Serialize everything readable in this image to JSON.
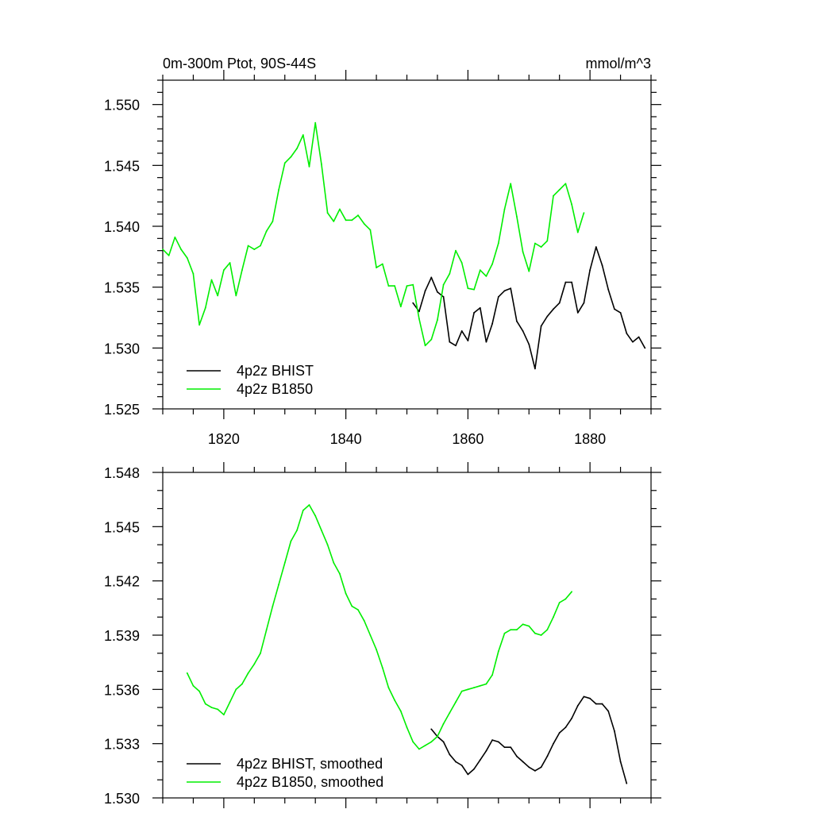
{
  "chart_data": [
    {
      "type": "line",
      "title": "0m-300m Ptot, 90S-44S",
      "subtitle": "mmol/m^3",
      "xlim": [
        1810,
        1890
      ],
      "ylim": [
        1.525,
        1.552
      ],
      "xticks": [
        1820,
        1840,
        1860,
        1880
      ],
      "xtick_labels": [
        "1820",
        "1840",
        "1860",
        "1880"
      ],
      "yticks": [
        1.525,
        1.53,
        1.535,
        1.54,
        1.545,
        1.55
      ],
      "ytick_labels": [
        "1.525",
        "1.530",
        "1.535",
        "1.540",
        "1.545",
        "1.550"
      ],
      "legend_position": "bottom-left",
      "series": [
        {
          "name": "4p2z BHIST",
          "color": "#000000",
          "x": [
            1851,
            1852,
            1853,
            1854,
            1855,
            1856,
            1857,
            1858,
            1859,
            1860,
            1861,
            1862,
            1863,
            1864,
            1865,
            1866,
            1867,
            1868,
            1869,
            1870,
            1871,
            1872,
            1873,
            1874,
            1875,
            1876,
            1877,
            1878,
            1879,
            1880,
            1881,
            1882,
            1883,
            1884,
            1885,
            1886,
            1887,
            1888,
            1889
          ],
          "values": [
            1.5337,
            1.533,
            1.5347,
            1.5358,
            1.5346,
            1.5342,
            1.5305,
            1.5302,
            1.5314,
            1.5306,
            1.5329,
            1.5333,
            1.5305,
            1.532,
            1.5342,
            1.5347,
            1.5349,
            1.5322,
            1.5314,
            1.5303,
            1.5283,
            1.5318,
            1.5326,
            1.5332,
            1.5337,
            1.5354,
            1.5354,
            1.5329,
            1.5337,
            1.5364,
            1.5383,
            1.5368,
            1.5348,
            1.5332,
            1.5329,
            1.5312,
            1.5305,
            1.5309,
            1.53
          ]
        },
        {
          "name": "4p2z B1850",
          "color": "#00ee00",
          "x": [
            1810,
            1811,
            1812,
            1813,
            1814,
            1815,
            1816,
            1817,
            1818,
            1819,
            1820,
            1821,
            1822,
            1823,
            1824,
            1825,
            1826,
            1827,
            1828,
            1829,
            1830,
            1831,
            1832,
            1833,
            1834,
            1835,
            1836,
            1837,
            1838,
            1839,
            1840,
            1841,
            1842,
            1843,
            1844,
            1845,
            1846,
            1847,
            1848,
            1849,
            1850,
            1851,
            1852,
            1853,
            1854,
            1855,
            1856,
            1857,
            1858,
            1859,
            1860,
            1861,
            1862,
            1863,
            1864,
            1865,
            1866,
            1867,
            1868,
            1869,
            1870,
            1871,
            1872,
            1873,
            1874,
            1875,
            1876,
            1877,
            1878,
            1879
          ],
          "values": [
            1.5381,
            1.5376,
            1.5391,
            1.5381,
            1.5374,
            1.5361,
            1.5319,
            1.5333,
            1.5356,
            1.5343,
            1.5364,
            1.537,
            1.5343,
            1.5364,
            1.5384,
            1.5381,
            1.5384,
            1.5396,
            1.5404,
            1.543,
            1.5452,
            1.5457,
            1.5464,
            1.5475,
            1.5449,
            1.5485,
            1.5451,
            1.5411,
            1.5404,
            1.5414,
            1.5405,
            1.5405,
            1.5409,
            1.5402,
            1.5397,
            1.5366,
            1.5369,
            1.5351,
            1.5351,
            1.5334,
            1.5351,
            1.5352,
            1.5324,
            1.5302,
            1.5307,
            1.5323,
            1.5352,
            1.5361,
            1.538,
            1.537,
            1.5349,
            1.5348,
            1.5364,
            1.5359,
            1.5369,
            1.5386,
            1.5414,
            1.5435,
            1.5408,
            1.5379,
            1.5363,
            1.5386,
            1.5383,
            1.5388,
            1.5425,
            1.543,
            1.5435,
            1.5418,
            1.5395,
            1.5411
          ]
        }
      ]
    },
    {
      "type": "line",
      "title": "",
      "xlim": [
        1810,
        1890
      ],
      "ylim": [
        1.53,
        1.548
      ],
      "xticks": [
        1820,
        1840,
        1860,
        1880
      ],
      "yticks": [
        1.53,
        1.533,
        1.536,
        1.539,
        1.542,
        1.545,
        1.548
      ],
      "ytick_labels": [
        "1.530",
        "1.533",
        "1.536",
        "1.539",
        "1.542",
        "1.545",
        "1.548"
      ],
      "legend_position": "bottom-left",
      "series": [
        {
          "name": "4p2z BHIST, smoothed",
          "color": "#000000",
          "x": [
            1854,
            1855,
            1856,
            1857,
            1858,
            1859,
            1860,
            1861,
            1862,
            1863,
            1864,
            1865,
            1866,
            1867,
            1868,
            1869,
            1870,
            1871,
            1872,
            1873,
            1874,
            1875,
            1876,
            1877,
            1878,
            1879,
            1880,
            1881,
            1882,
            1883,
            1884,
            1885,
            1886
          ],
          "values": [
            1.5338,
            1.5334,
            1.5331,
            1.5324,
            1.532,
            1.5318,
            1.5313,
            1.5316,
            1.5321,
            1.5326,
            1.5332,
            1.5331,
            1.5328,
            1.5328,
            1.5323,
            1.532,
            1.5317,
            1.5315,
            1.5317,
            1.5323,
            1.533,
            1.5336,
            1.5339,
            1.5344,
            1.5351,
            1.5356,
            1.5355,
            1.5352,
            1.5352,
            1.5348,
            1.5337,
            1.532,
            1.5308
          ]
        },
        {
          "name": "4p2z B1850, smoothed",
          "color": "#00ee00",
          "x": [
            1814,
            1815,
            1816,
            1817,
            1818,
            1819,
            1820,
            1821,
            1822,
            1823,
            1824,
            1825,
            1826,
            1827,
            1828,
            1829,
            1830,
            1831,
            1832,
            1833,
            1834,
            1835,
            1836,
            1837,
            1838,
            1839,
            1840,
            1841,
            1842,
            1843,
            1844,
            1845,
            1846,
            1847,
            1848,
            1849,
            1850,
            1851,
            1852,
            1853,
            1854,
            1855,
            1856,
            1857,
            1858,
            1859,
            1860,
            1861,
            1862,
            1863,
            1864,
            1865,
            1866,
            1867,
            1868,
            1869,
            1870,
            1871,
            1872,
            1873,
            1874,
            1875,
            1876,
            1877
          ],
          "values": [
            1.5369,
            1.5362,
            1.5359,
            1.5352,
            1.535,
            1.5349,
            1.5346,
            1.5353,
            1.536,
            1.5363,
            1.5369,
            1.5374,
            1.538,
            1.5393,
            1.5406,
            1.5418,
            1.543,
            1.5442,
            1.5448,
            1.5459,
            1.5462,
            1.5456,
            1.5448,
            1.544,
            1.543,
            1.5424,
            1.5413,
            1.5406,
            1.5404,
            1.5398,
            1.539,
            1.5382,
            1.5372,
            1.5361,
            1.5354,
            1.5348,
            1.5339,
            1.5331,
            1.5327,
            1.5329,
            1.5331,
            1.5334,
            1.5341,
            1.5347,
            1.5353,
            1.5359,
            1.536,
            1.5361,
            1.5362,
            1.5363,
            1.5368,
            1.5381,
            1.5391,
            1.5393,
            1.5393,
            1.5396,
            1.5395,
            1.5391,
            1.539,
            1.5393,
            1.54,
            1.5408,
            1.541,
            1.5414
          ]
        }
      ]
    }
  ]
}
